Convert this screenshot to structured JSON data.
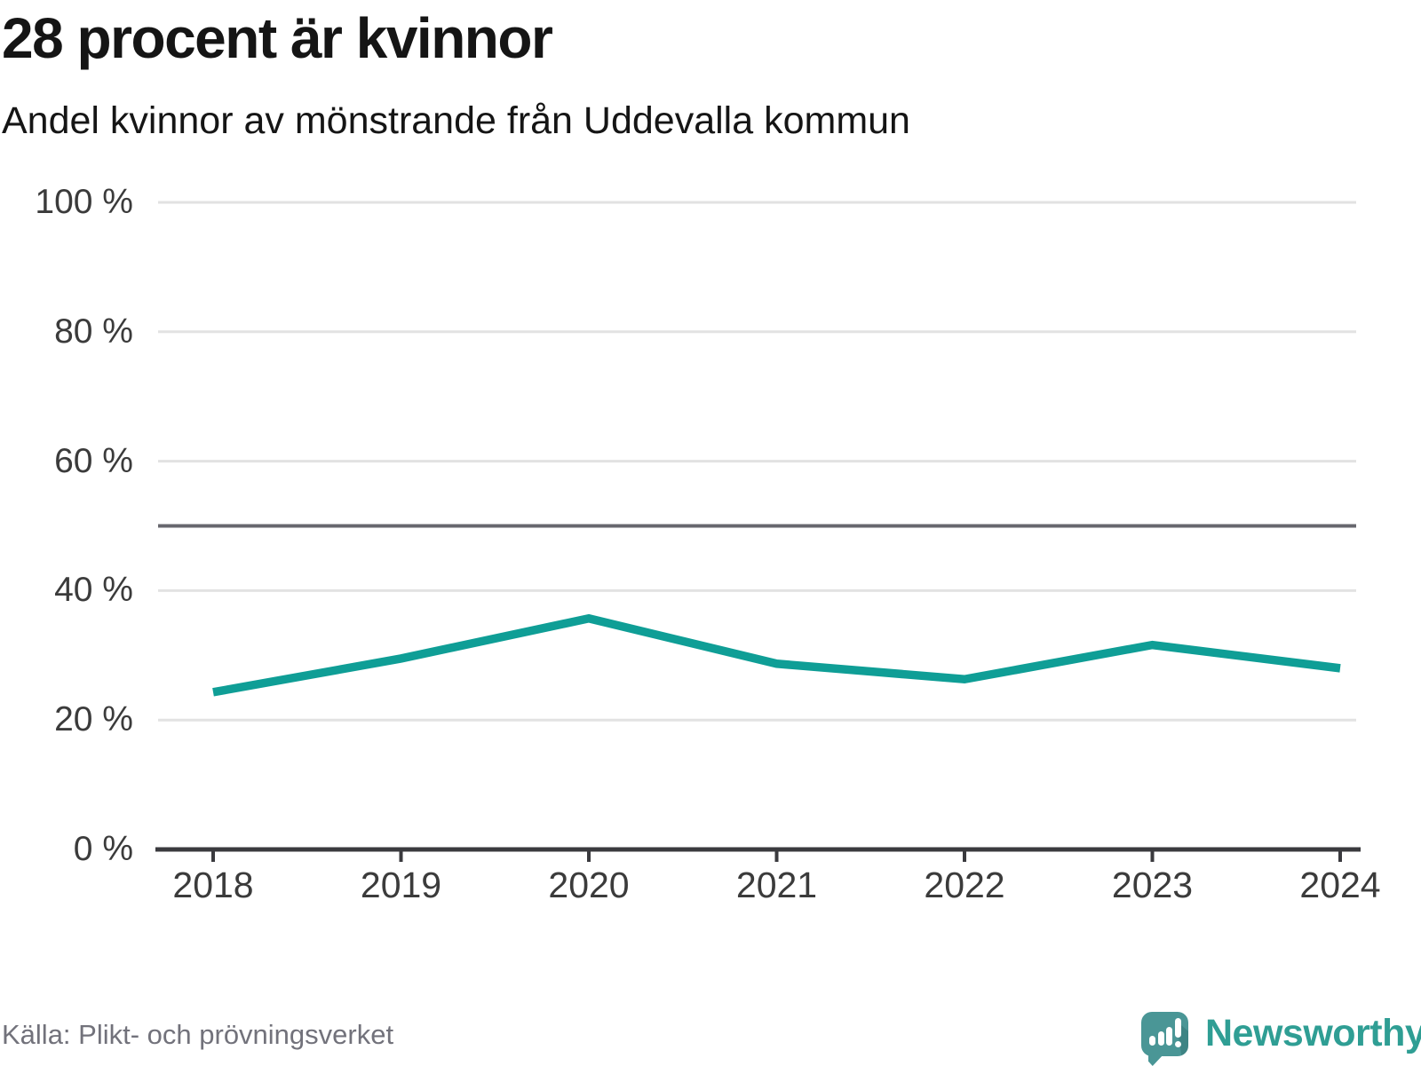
{
  "header": {
    "title": "28 procent är kvinnor",
    "subtitle": "Andel kvinnor av mönstrande från Uddevalla kommun"
  },
  "chart_data": {
    "type": "line",
    "title": "28 procent är kvinnor",
    "subtitle": "Andel kvinnor av mönstrande från Uddevalla kommun",
    "x": [
      "2018",
      "2019",
      "2020",
      "2021",
      "2022",
      "2023",
      "2024"
    ],
    "series": [
      {
        "name": "andel-kvinnor",
        "values": [
          24.3,
          29.5,
          35.7,
          28.7,
          26.3,
          31.6,
          28.0
        ]
      }
    ],
    "ylim": [
      0,
      100
    ],
    "yticks": [
      0,
      20,
      40,
      60,
      80,
      100
    ],
    "ytick_suffix": " %",
    "reference_line": {
      "value": 50
    },
    "grid": "horizontal",
    "legend": "none",
    "colors": {
      "line": "#0f9e96",
      "grid": "#e2e2e2",
      "axis": "#3a3a3e",
      "reference": "#67676e",
      "tick_text": "#3b3b3b"
    }
  },
  "footer": {
    "source": "Källa: Plikt- och prövningsverket",
    "brand": "Newsworthy"
  },
  "icons": {
    "logo": "newsworthy-speech-bubble-bar-chart"
  }
}
